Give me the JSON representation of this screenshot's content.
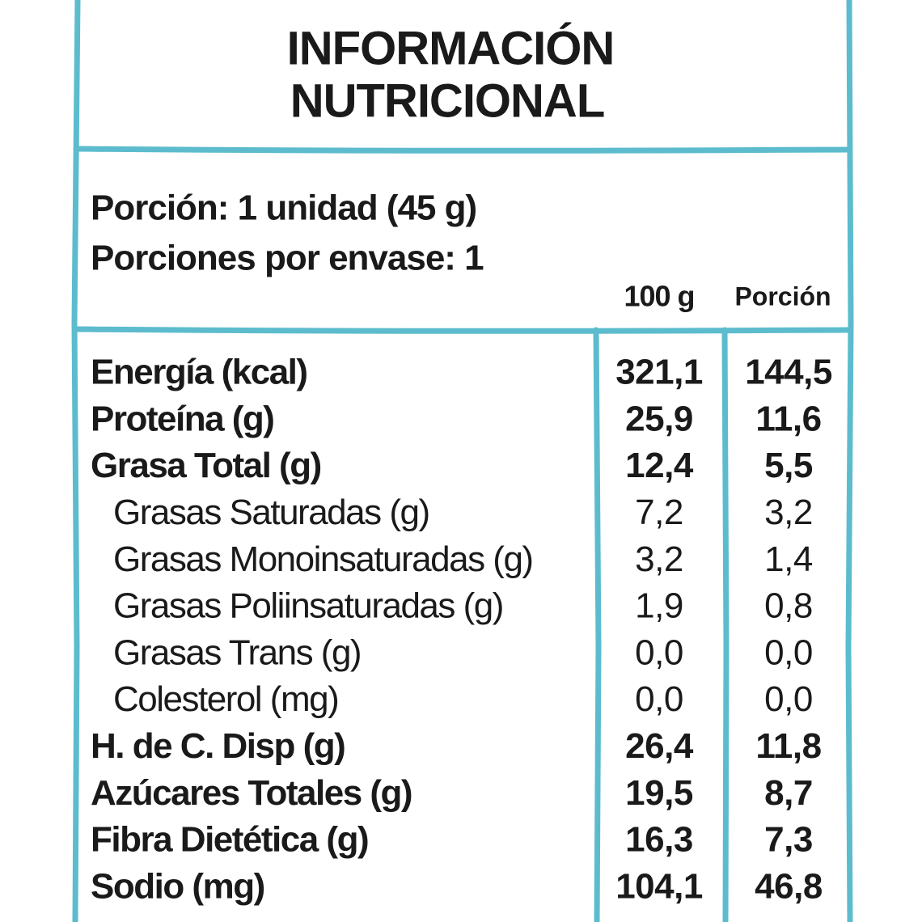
{
  "header": {
    "title_lines": [
      "INFORMACIÓN",
      "NUTRICIONAL"
    ]
  },
  "serving": {
    "portion": "Porción: 1 unidad (45 g)",
    "per_package": "Porciones por envase: 1"
  },
  "table": {
    "columns": [
      "100 g",
      "Porción"
    ],
    "rows": [
      {
        "label": "Energía (kcal)",
        "values": [
          "321,1",
          "144,5"
        ],
        "indent": false
      },
      {
        "label": "Proteína (g)",
        "values": [
          "25,9",
          "11,6"
        ],
        "indent": false
      },
      {
        "label": "Grasa Total (g)",
        "values": [
          "12,4",
          "5,5"
        ],
        "indent": false
      },
      {
        "label": "Grasas Saturadas (g)",
        "values": [
          "7,2",
          "3,2"
        ],
        "indent": true
      },
      {
        "label": "Grasas Monoinsaturadas (g)",
        "values": [
          "3,2",
          "1,4"
        ],
        "indent": true
      },
      {
        "label": "Grasas Poliinsaturadas (g)",
        "values": [
          "1,9",
          "0,8"
        ],
        "indent": true
      },
      {
        "label": "Grasas Trans (g)",
        "values": [
          "0,0",
          "0,0"
        ],
        "indent": true
      },
      {
        "label": "Colesterol (mg)",
        "values": [
          "0,0",
          "0,0"
        ],
        "indent": true
      },
      {
        "label": "H. de C. Disp (g)",
        "values": [
          "26,4",
          "11,8"
        ],
        "indent": false
      },
      {
        "label": "Azúcares Totales (g)",
        "values": [
          "19,5",
          "8,7"
        ],
        "indent": false
      },
      {
        "label": "Fibra Dietética (g)",
        "values": [
          "16,3",
          "7,3"
        ],
        "indent": false
      },
      {
        "label": "Sodio (mg)",
        "values": [
          "104,1",
          "46,8"
        ],
        "indent": false
      }
    ]
  }
}
